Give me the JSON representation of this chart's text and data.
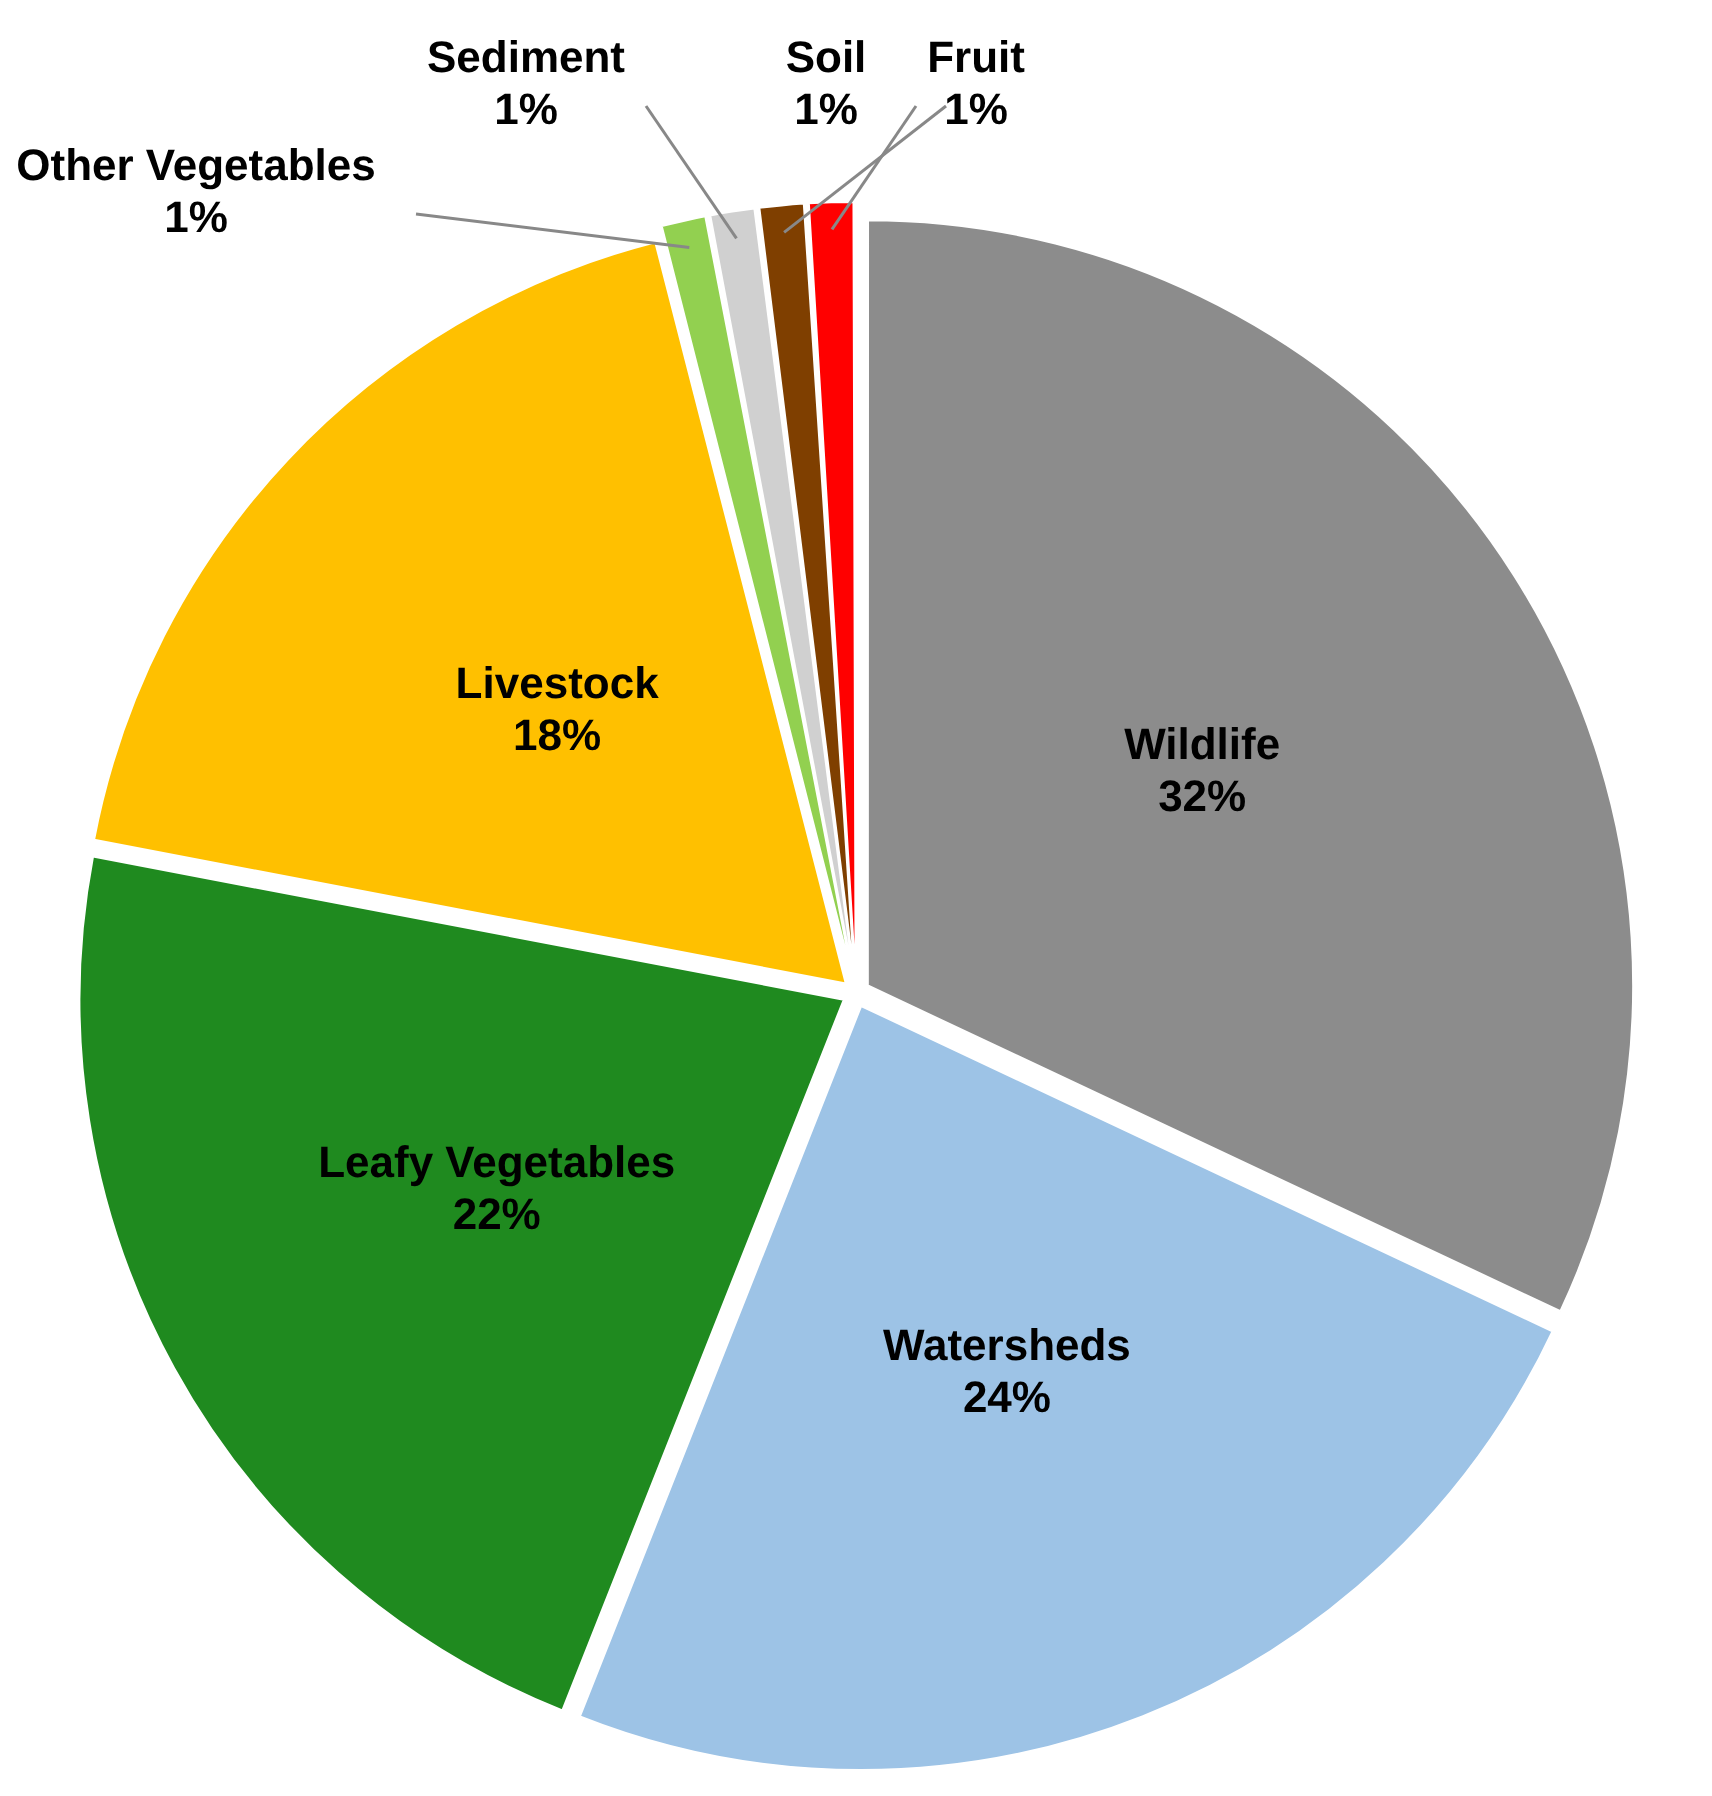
{
  "chart_data": {
    "type": "pie",
    "categories": [
      "Wildlife",
      "Watersheds",
      "Leafy Vegetables",
      "Livestock",
      "Other Vegetables",
      "Sediment",
      "Soil",
      "Fruit"
    ],
    "values": [
      32,
      24,
      22,
      18,
      1,
      1,
      1,
      1
    ],
    "colors": [
      "#8c8c8c",
      "#9dc3e6",
      "#1f8a1f",
      "#ffc000",
      "#92d050",
      "#d0d0d0",
      "#7f3f00",
      "#ff0000"
    ],
    "value_labels": [
      "32%",
      "24%",
      "22%",
      "18%",
      "1%",
      "1%",
      "1%",
      "1%"
    ],
    "legend": false
  }
}
